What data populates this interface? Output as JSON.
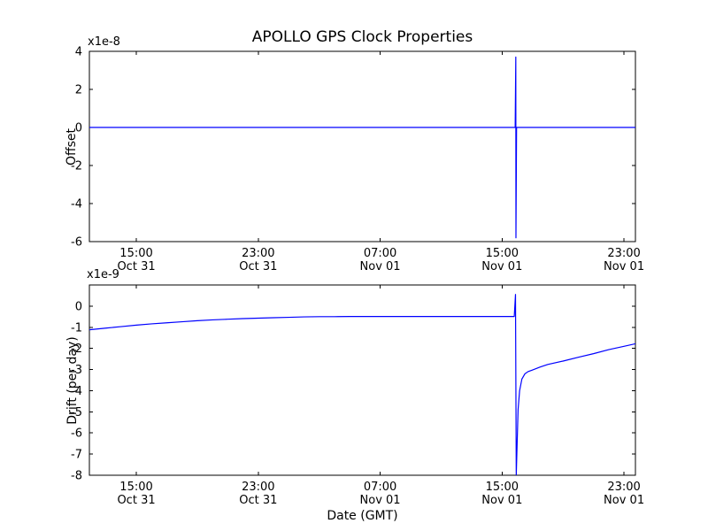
{
  "figure": {
    "title": "APOLLO GPS Clock Properties",
    "xlabel": "Date (GMT)",
    "background_color": "#ffffff",
    "frame_color": "#000000",
    "line_color": "#0000ff"
  },
  "chart_data": [
    {
      "type": "line",
      "name": "offset-subplot",
      "title": "APOLLO GPS Clock Properties",
      "ylabel": "Offset",
      "y_offset_text": "x1e-8",
      "y_unit_scale": "1e-8",
      "x_unit": "hours since Oct 31 00:00 GMT",
      "xlim": [
        11.92,
        47.75
      ],
      "ylim": [
        -6,
        4
      ],
      "yticks": [
        4,
        2,
        0,
        -2,
        -4,
        -6
      ],
      "xticks": [
        {
          "h": 15,
          "time": "15:00",
          "date": "Oct 31"
        },
        {
          "h": 23,
          "time": "23:00",
          "date": "Oct 31"
        },
        {
          "h": 31,
          "time": "07:00",
          "date": "Nov 01"
        },
        {
          "h": 39,
          "time": "15:00",
          "date": "Nov 01"
        },
        {
          "h": 47,
          "time": "23:00",
          "date": "Nov 01"
        }
      ],
      "grid": false,
      "legend": null,
      "series": [
        {
          "name": "offset",
          "color": "#0000ff",
          "points": [
            [
              11.92,
              0
            ],
            [
              39.86,
              0
            ],
            [
              39.9,
              3.7
            ],
            [
              39.91,
              -5.8
            ],
            [
              39.95,
              0
            ],
            [
              47.75,
              0
            ]
          ]
        }
      ]
    },
    {
      "type": "line",
      "name": "drift-subplot",
      "title": "",
      "ylabel": "Drift (per day)",
      "y_offset_text": "x1e-9",
      "y_unit_scale": "1e-9",
      "x_unit": "hours since Oct 31 00:00 GMT",
      "xlim": [
        11.92,
        47.75
      ],
      "ylim": [
        -8,
        1
      ],
      "yticks": [
        0,
        -1,
        -2,
        -3,
        -4,
        -5,
        -6,
        -7,
        -8
      ],
      "xticks": [
        {
          "h": 15,
          "time": "15:00",
          "date": "Oct 31"
        },
        {
          "h": 23,
          "time": "23:00",
          "date": "Oct 31"
        },
        {
          "h": 31,
          "time": "07:00",
          "date": "Nov 01"
        },
        {
          "h": 39,
          "time": "15:00",
          "date": "Nov 01"
        },
        {
          "h": 47,
          "time": "23:00",
          "date": "Nov 01"
        }
      ],
      "grid": false,
      "legend": null,
      "series": [
        {
          "name": "drift",
          "color": "#0000ff",
          "points": [
            [
              11.92,
              -1.12
            ],
            [
              13,
              -1.04
            ],
            [
              14,
              -0.97
            ],
            [
              15,
              -0.9
            ],
            [
              16,
              -0.84
            ],
            [
              17,
              -0.79
            ],
            [
              18,
              -0.74
            ],
            [
              19,
              -0.69
            ],
            [
              20,
              -0.65
            ],
            [
              21,
              -0.62
            ],
            [
              22,
              -0.59
            ],
            [
              23,
              -0.57
            ],
            [
              24,
              -0.55
            ],
            [
              25,
              -0.53
            ],
            [
              26,
              -0.51
            ],
            [
              27,
              -0.5
            ],
            [
              28,
              -0.5
            ],
            [
              29,
              -0.49
            ],
            [
              31,
              -0.49
            ],
            [
              33,
              -0.49
            ],
            [
              35,
              -0.49
            ],
            [
              37,
              -0.49
            ],
            [
              39,
              -0.49
            ],
            [
              39.8,
              -0.49
            ],
            [
              39.88,
              0.55
            ],
            [
              39.93,
              -8.0
            ],
            [
              40.05,
              -4.9
            ],
            [
              40.15,
              -4.0
            ],
            [
              40.3,
              -3.45
            ],
            [
              40.5,
              -3.2
            ],
            [
              40.7,
              -3.1
            ],
            [
              41.0,
              -3.02
            ],
            [
              41.5,
              -2.88
            ],
            [
              42,
              -2.76
            ],
            [
              43,
              -2.6
            ],
            [
              44,
              -2.42
            ],
            [
              45,
              -2.25
            ],
            [
              46,
              -2.06
            ],
            [
              47,
              -1.9
            ],
            [
              47.75,
              -1.78
            ]
          ]
        }
      ]
    }
  ]
}
